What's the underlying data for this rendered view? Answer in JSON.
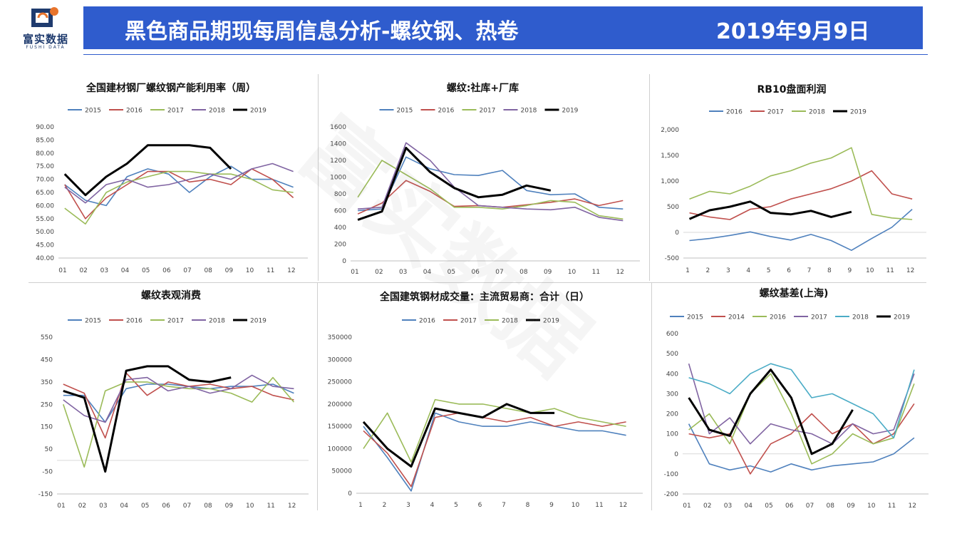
{
  "header": {
    "logo_cn": "富实数据",
    "logo_en": "FUSHI DATA",
    "title": "黑色商品期现每周信息分析-螺纹钢、热卷",
    "date": "2019年9月9日",
    "accent": "#2f5ccd"
  },
  "watermark": "富实数据",
  "colors": {
    "2014": "#c0504d",
    "2015": "#4f81bd",
    "2016": "#c0504d",
    "2017": "#9bbb59",
    "2018": "#8064a2",
    "2018c": "#4bacc6",
    "2019": "#000000"
  },
  "chart_data": [
    {
      "id": "c1",
      "type": "line",
      "title": "全国建材钢厂螺纹钢产能利用率（周）",
      "ylim": [
        40,
        90
      ],
      "yticks": [
        "90.00",
        "85.00",
        "80.00",
        "75.00",
        "70.00",
        "65.00",
        "60.00",
        "55.00",
        "50.00",
        "45.00",
        "40.00"
      ],
      "xticks": [
        "01",
        "02",
        "03",
        "04",
        "05",
        "06",
        "07",
        "08",
        "09",
        "10",
        "11",
        "12"
      ],
      "x": [
        1,
        2,
        3,
        4,
        5,
        6,
        7,
        8,
        9,
        10,
        11,
        12
      ],
      "series": [
        {
          "name": "2015",
          "color_key": "2015",
          "values": [
            68,
            62,
            60,
            71,
            74,
            72,
            65,
            71,
            75,
            70,
            70,
            67
          ]
        },
        {
          "name": "2016",
          "color_key": "2016",
          "values": [
            68,
            55,
            63,
            68,
            73,
            73,
            69,
            70,
            68,
            74,
            70,
            63
          ]
        },
        {
          "name": "2017",
          "color_key": "2017",
          "values": [
            59,
            53,
            65,
            69,
            71,
            73,
            73,
            72,
            72,
            70,
            66,
            65
          ]
        },
        {
          "name": "2018",
          "color_key": "2018",
          "values": [
            67,
            61,
            68,
            70,
            67,
            68,
            70,
            72,
            70,
            74,
            76,
            73
          ]
        },
        {
          "name": "2019",
          "color_key": "2019",
          "values": [
            72,
            64,
            71,
            76,
            83,
            83,
            83,
            82,
            74,
            null,
            null,
            null
          ]
        }
      ]
    },
    {
      "id": "c2",
      "type": "line",
      "title": "螺纹:社库+厂库",
      "ylim": [
        0,
        1600
      ],
      "yticks": [
        "1600",
        "1400",
        "1200",
        "1000",
        "800",
        "600",
        "400",
        "200",
        "0"
      ],
      "xticks": [
        "01",
        "02",
        "03",
        "04",
        "05",
        "06",
        "07",
        "08",
        "09",
        "10",
        "11",
        "12"
      ],
      "x": [
        1,
        2,
        3,
        4,
        5,
        6,
        7,
        8,
        9,
        10,
        11,
        12
      ],
      "series": [
        {
          "name": "2015",
          "color_key": "2015",
          "values": [
            600,
            620,
            1240,
            1100,
            1030,
            1020,
            1080,
            840,
            790,
            800,
            640,
            620
          ]
        },
        {
          "name": "2016",
          "color_key": "2016",
          "values": [
            560,
            690,
            960,
            830,
            650,
            660,
            640,
            670,
            700,
            740,
            660,
            720
          ]
        },
        {
          "name": "2017",
          "color_key": "2017",
          "values": [
            760,
            1200,
            1030,
            860,
            640,
            640,
            620,
            660,
            720,
            700,
            540,
            500
          ]
        },
        {
          "name": "2018",
          "color_key": "2018",
          "values": [
            620,
            640,
            1410,
            1200,
            880,
            660,
            640,
            620,
            610,
            640,
            520,
            480
          ]
        },
        {
          "name": "2019",
          "color_key": "2019",
          "values": [
            490,
            590,
            1350,
            1060,
            870,
            760,
            790,
            900,
            840,
            null,
            null,
            null
          ]
        }
      ]
    },
    {
      "id": "c3",
      "type": "line",
      "title": "RB10盘面利润",
      "ylim": [
        -500,
        2000
      ],
      "yticks": [
        "2,000",
        "1,500",
        "1,000",
        "500",
        "0",
        "-500"
      ],
      "xticks": [
        "1",
        "2",
        "3",
        "4",
        "5",
        "6",
        "7",
        "8",
        "9",
        "10",
        "11",
        "12"
      ],
      "x": [
        1,
        2,
        3,
        4,
        5,
        6,
        7,
        8,
        9,
        10,
        11,
        12
      ],
      "series": [
        {
          "name": "2016",
          "color_key": "2015",
          "values": [
            -160,
            -120,
            -60,
            10,
            -80,
            -150,
            -40,
            -160,
            -350,
            -120,
            100,
            450
          ]
        },
        {
          "name": "2017",
          "color_key": "2016",
          "values": [
            380,
            300,
            250,
            450,
            500,
            650,
            750,
            850,
            1000,
            1200,
            750,
            650
          ]
        },
        {
          "name": "2018",
          "color_key": "2017",
          "values": [
            650,
            800,
            750,
            900,
            1100,
            1200,
            1350,
            1450,
            1650,
            350,
            280,
            250
          ]
        },
        {
          "name": "2019",
          "color_key": "2019",
          "values": [
            260,
            430,
            500,
            600,
            380,
            350,
            420,
            300,
            400,
            null,
            null,
            null
          ]
        }
      ]
    },
    {
      "id": "c4",
      "type": "line",
      "title": "螺纹表观消费",
      "ylim": [
        -150,
        550
      ],
      "yticks": [
        "550",
        "450",
        "350",
        "250",
        "150",
        "50",
        "-50",
        "-150"
      ],
      "xticks": [
        "01",
        "02",
        "03",
        "04",
        "05",
        "06",
        "07",
        "08",
        "09",
        "10",
        "11",
        "12"
      ],
      "x": [
        1,
        2,
        3,
        4,
        5,
        6,
        7,
        8,
        9,
        10,
        11,
        12
      ],
      "series": [
        {
          "name": "2015",
          "color_key": "2015",
          "values": [
            290,
            290,
            170,
            320,
            340,
            340,
            330,
            320,
            330,
            330,
            340,
            300
          ]
        },
        {
          "name": "2016",
          "color_key": "2016",
          "values": [
            340,
            300,
            100,
            390,
            290,
            350,
            330,
            340,
            320,
            330,
            290,
            270
          ]
        },
        {
          "name": "2017",
          "color_key": "2017",
          "values": [
            250,
            -30,
            310,
            350,
            350,
            330,
            320,
            320,
            300,
            260,
            370,
            260
          ]
        },
        {
          "name": "2018",
          "color_key": "2018",
          "values": [
            270,
            200,
            170,
            360,
            370,
            310,
            330,
            300,
            320,
            380,
            330,
            320
          ]
        },
        {
          "name": "2019",
          "color_key": "2019",
          "values": [
            310,
            280,
            -50,
            400,
            420,
            420,
            360,
            350,
            370,
            null,
            null,
            null
          ]
        }
      ]
    },
    {
      "id": "c5",
      "type": "line",
      "title": "全国建筑钢材成交量：主流贸易商：合计（日）",
      "ylim": [
        0,
        350000
      ],
      "yticks": [
        "350000",
        "300000",
        "250000",
        "200000",
        "150000",
        "100000",
        "50000",
        "0"
      ],
      "xticks": [
        "1",
        "2",
        "3",
        "4",
        "5",
        "6",
        "7",
        "8",
        "9",
        "10",
        "11",
        "12"
      ],
      "x": [
        1,
        2,
        3,
        4,
        5,
        6,
        7,
        8,
        9,
        10,
        11,
        12
      ],
      "series": [
        {
          "name": "2016",
          "color_key": "2015",
          "values": [
            150000,
            80000,
            5000,
            180000,
            160000,
            150000,
            150000,
            160000,
            150000,
            140000,
            140000,
            130000
          ]
        },
        {
          "name": "2017",
          "color_key": "2016",
          "values": [
            140000,
            90000,
            15000,
            170000,
            180000,
            170000,
            160000,
            170000,
            150000,
            160000,
            150000,
            160000
          ]
        },
        {
          "name": "2018",
          "color_key": "2017",
          "values": [
            100000,
            180000,
            70000,
            210000,
            200000,
            200000,
            190000,
            180000,
            190000,
            170000,
            160000,
            150000
          ]
        },
        {
          "name": "2019",
          "color_key": "2019",
          "values": [
            160000,
            100000,
            60000,
            190000,
            180000,
            170000,
            200000,
            180000,
            180000,
            null,
            null,
            null
          ]
        }
      ]
    },
    {
      "id": "c6",
      "type": "line",
      "title": "螺纹基差(上海)",
      "ylim": [
        -200,
        600
      ],
      "yticks": [
        "600",
        "500",
        "400",
        "300",
        "200",
        "100",
        "0",
        "-100",
        "-200"
      ],
      "xticks": [
        "01",
        "02",
        "03",
        "04",
        "05",
        "06",
        "07",
        "08",
        "09",
        "10",
        "11",
        "12"
      ],
      "x": [
        1,
        2,
        3,
        4,
        5,
        6,
        7,
        8,
        9,
        10,
        11,
        12
      ],
      "series": [
        {
          "name": "2015",
          "color_key": "2015",
          "values": [
            150,
            -50,
            -80,
            -60,
            -90,
            -50,
            -80,
            -60,
            -50,
            -40,
            0,
            80
          ]
        },
        {
          "name": "2014",
          "color_key": "2016",
          "values": [
            100,
            80,
            100,
            -100,
            50,
            100,
            200,
            100,
            150,
            50,
            100,
            250
          ]
        },
        {
          "name": "2016",
          "color_key": "2017",
          "values": [
            120,
            200,
            50,
            300,
            400,
            200,
            -50,
            0,
            100,
            50,
            80,
            350
          ]
        },
        {
          "name": "2017",
          "color_key": "2018",
          "values": [
            450,
            100,
            180,
            50,
            150,
            120,
            100,
            50,
            150,
            100,
            120,
            400
          ]
        },
        {
          "name": "2018",
          "color_key": "2018c",
          "values": [
            380,
            350,
            300,
            400,
            450,
            420,
            280,
            300,
            250,
            200,
            80,
            420
          ]
        },
        {
          "name": "2019",
          "color_key": "2019",
          "values": [
            280,
            120,
            90,
            300,
            420,
            280,
            0,
            50,
            220,
            null,
            null,
            null
          ]
        }
      ]
    }
  ]
}
